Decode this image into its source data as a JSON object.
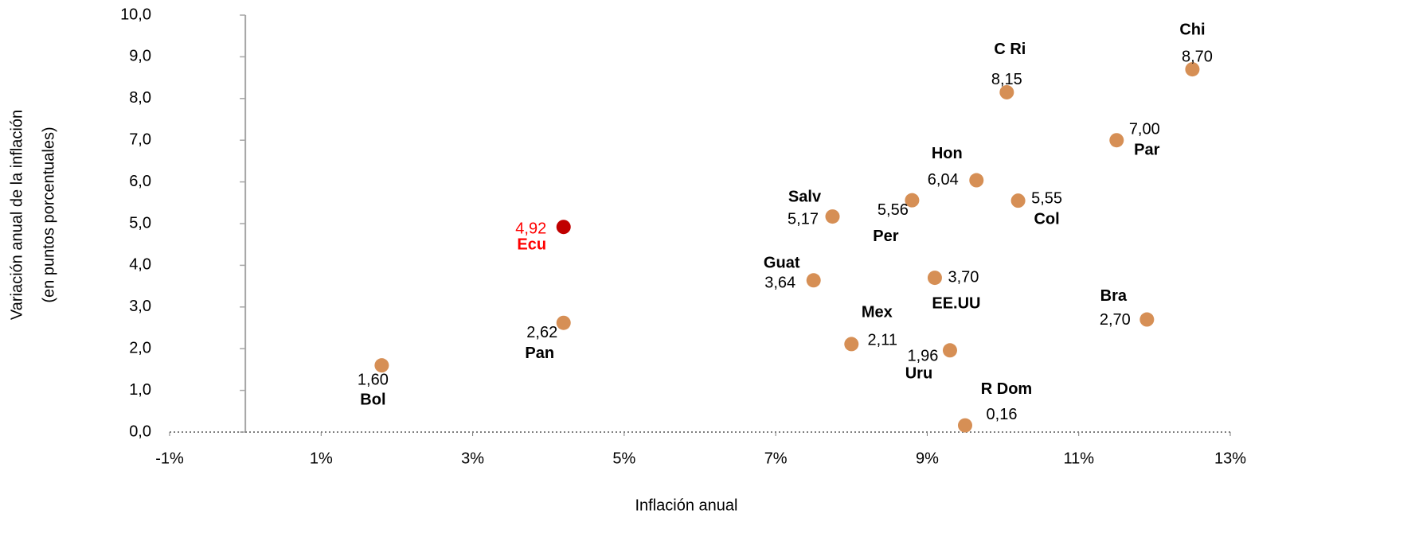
{
  "chart_data": {
    "type": "scatter",
    "x_label": "Inflación anual",
    "y_label": [
      "Variación anual de la inflación",
      "(en puntos porcentuales)"
    ],
    "labels": [
      "Bol",
      "Pan",
      "Ecu",
      "Guat",
      "Salv",
      "Mex",
      "Per",
      "EE.UU",
      "Uru",
      "R Dom",
      "Hon",
      "C Ri",
      "Col",
      "Par",
      "Bra",
      "Chi"
    ],
    "x": [
      1.8,
      4.2,
      4.2,
      7.5,
      7.75,
      8.0,
      8.8,
      9.1,
      9.3,
      9.5,
      9.65,
      10.05,
      10.2,
      11.5,
      11.9,
      12.5
    ],
    "values": [
      1.6,
      2.62,
      4.92,
      3.64,
      5.17,
      2.11,
      5.56,
      3.7,
      1.96,
      0.16,
      6.04,
      8.15,
      5.55,
      7.0,
      2.7,
      8.7
    ],
    "value_labels": [
      "1,60",
      "2,62",
      "4,92",
      "3,64",
      "5,17",
      "2,11",
      "5,56",
      "3,70",
      "1,96",
      "0,16",
      "6,04",
      "8,15",
      "5,55",
      "7,00",
      "2,70",
      "8,70"
    ],
    "colors": [
      "#d68f55",
      "#d68f55",
      "#c00000",
      "#d68f55",
      "#d68f55",
      "#d68f55",
      "#d68f55",
      "#d68f55",
      "#d68f55",
      "#d68f55",
      "#d68f55",
      "#d68f55",
      "#d68f55",
      "#d68f55",
      "#d68f55",
      "#d68f55"
    ],
    "text_colors": [
      "#000000",
      "#000000",
      "#ff0000",
      "#000000",
      "#000000",
      "#000000",
      "#000000",
      "#000000",
      "#000000",
      "#000000",
      "#000000",
      "#000000",
      "#000000",
      "#000000",
      "#000000",
      "#000000"
    ],
    "xlim": [
      -1,
      13
    ],
    "xticks": [
      {
        "value": -1,
        "label": "-1%"
      },
      {
        "value": 1,
        "label": "1%"
      },
      {
        "value": 3,
        "label": "3%"
      },
      {
        "value": 5,
        "label": "5%"
      },
      {
        "value": 7,
        "label": "7%"
      },
      {
        "value": 9,
        "label": "9%"
      },
      {
        "value": 11,
        "label": "11%"
      },
      {
        "value": 13,
        "label": "13%"
      }
    ],
    "ylim": [
      0,
      10
    ],
    "yticks": [
      {
        "value": 0,
        "label": "0,0"
      },
      {
        "value": 1,
        "label": "1,0"
      },
      {
        "value": 2,
        "label": "2,0"
      },
      {
        "value": 3,
        "label": "3,0"
      },
      {
        "value": 4,
        "label": "4,0"
      },
      {
        "value": 5,
        "label": "5,0"
      },
      {
        "value": 6,
        "label": "6,0"
      },
      {
        "value": 7,
        "label": "7,0"
      },
      {
        "value": 8,
        "label": "8,0"
      },
      {
        "value": 9,
        "label": "9,0"
      },
      {
        "value": 10,
        "label": "10,0"
      }
    ]
  }
}
